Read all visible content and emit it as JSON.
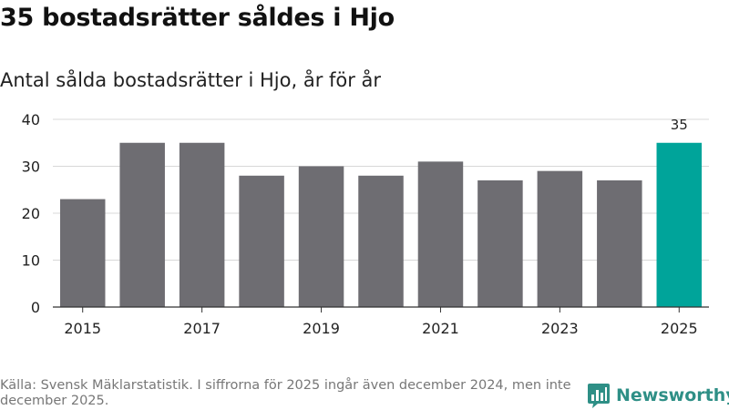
{
  "title": "35 bostadsrätter såldes i Hjo",
  "subtitle": "Antal sålda bostadsrätter i Hjo, år för år",
  "source": "Källa: Svensk Mäklarstatistik. I siffrorna för 2025 ingår även december 2024, men inte december 2025.",
  "brand": {
    "name": "Newsworthy",
    "icon": "bar-chart-logo-icon",
    "color": "#2e8f86"
  },
  "colors": {
    "bar": "#6e6d72",
    "highlight": "#00a49a",
    "grid": "#d8d8d8",
    "axis": "#333333"
  },
  "chart_data": {
    "type": "bar",
    "title": "",
    "xlabel": "",
    "ylabel": "",
    "x": [
      2015,
      2016,
      2017,
      2018,
      2019,
      2020,
      2021,
      2022,
      2023,
      2024,
      2025
    ],
    "values": [
      23,
      35,
      35,
      28,
      30,
      28,
      31,
      27,
      29,
      27,
      35
    ],
    "xticks": [
      "2015",
      "2017",
      "2019",
      "2021",
      "2023",
      "2025"
    ],
    "yticks": [
      0,
      10,
      20,
      30,
      40
    ],
    "ylim": [
      0,
      40
    ],
    "grid": true,
    "highlight": {
      "x": 2025,
      "label": "35"
    }
  }
}
